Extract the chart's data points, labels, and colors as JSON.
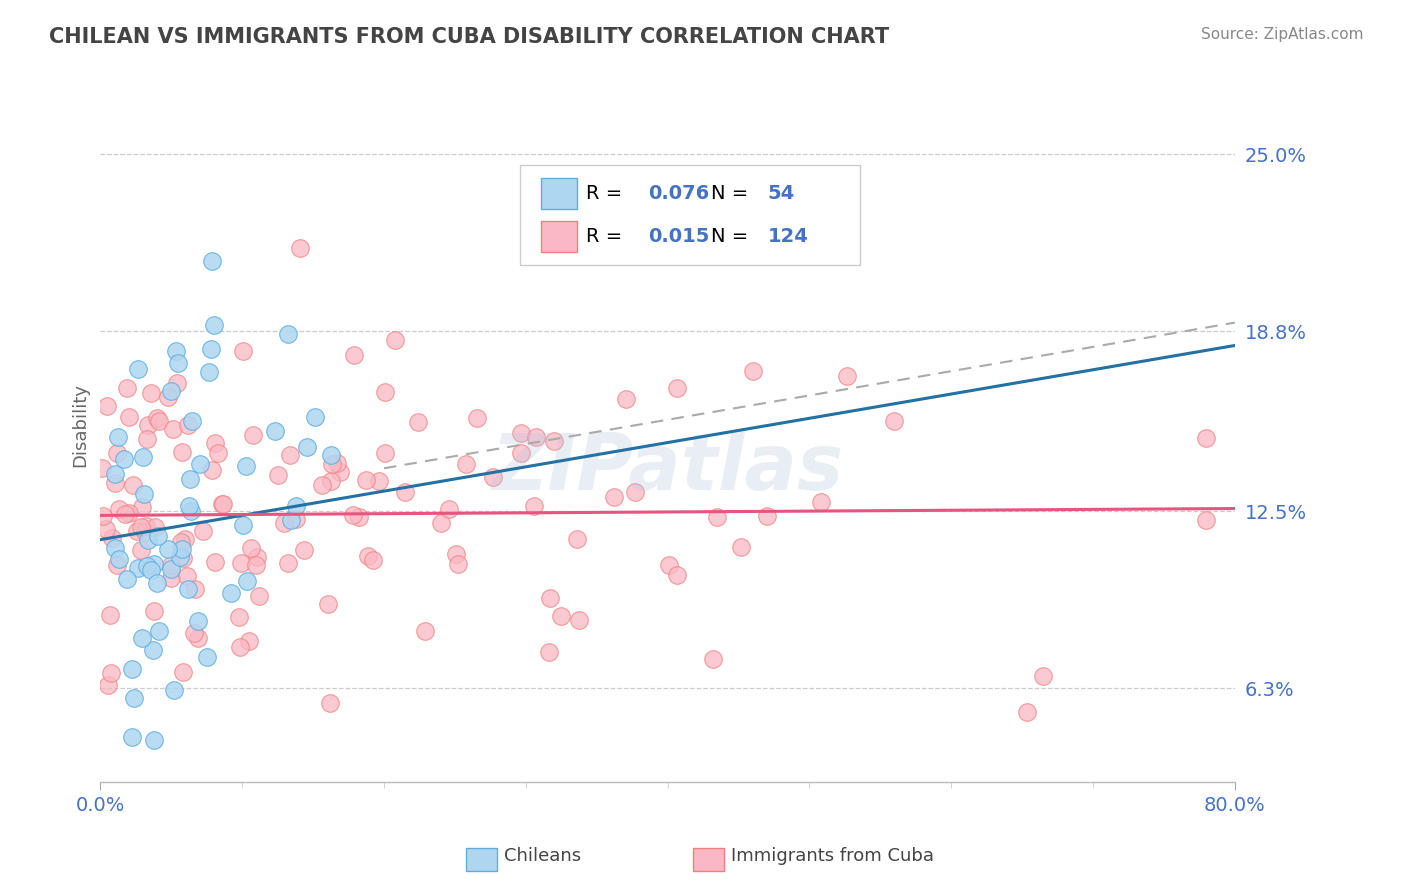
{
  "title": "CHILEAN VS IMMIGRANTS FROM CUBA DISABILITY CORRELATION CHART",
  "source": "Source: ZipAtlas.com",
  "ylabel": "Disability",
  "xlim": [
    0.0,
    80.0
  ],
  "ylim": [
    3.0,
    28.0
  ],
  "yticks": [
    6.3,
    12.5,
    18.8,
    25.0
  ],
  "ytick_labels": [
    "6.3%",
    "12.5%",
    "18.8%",
    "25.0%"
  ],
  "xtick_left": 0.0,
  "xtick_right": 80.0,
  "xtick_label_left": "0.0%",
  "xtick_label_right": "80.0%",
  "chilean_color_fill": "#AED6F1",
  "chilean_color_edge": "#5DADE2",
  "chilean_line_color": "#2471A3",
  "cuba_color_fill": "#F9B8C4",
  "cuba_color_edge": "#F08080",
  "cuba_line_color": "#E75480",
  "dashed_line_color": "#AAAAAA",
  "chilean_R": 0.076,
  "chilean_N": 54,
  "cuba_R": 0.015,
  "cuba_N": 124,
  "watermark": "ZIPatlas",
  "legend_label_1": "Chileans",
  "legend_label_2": "Immigrants from Cuba",
  "background_color": "#ffffff",
  "grid_color": "#cccccc",
  "title_color": "#444444",
  "axis_label_color": "#4472C4",
  "source_color": "#888888"
}
